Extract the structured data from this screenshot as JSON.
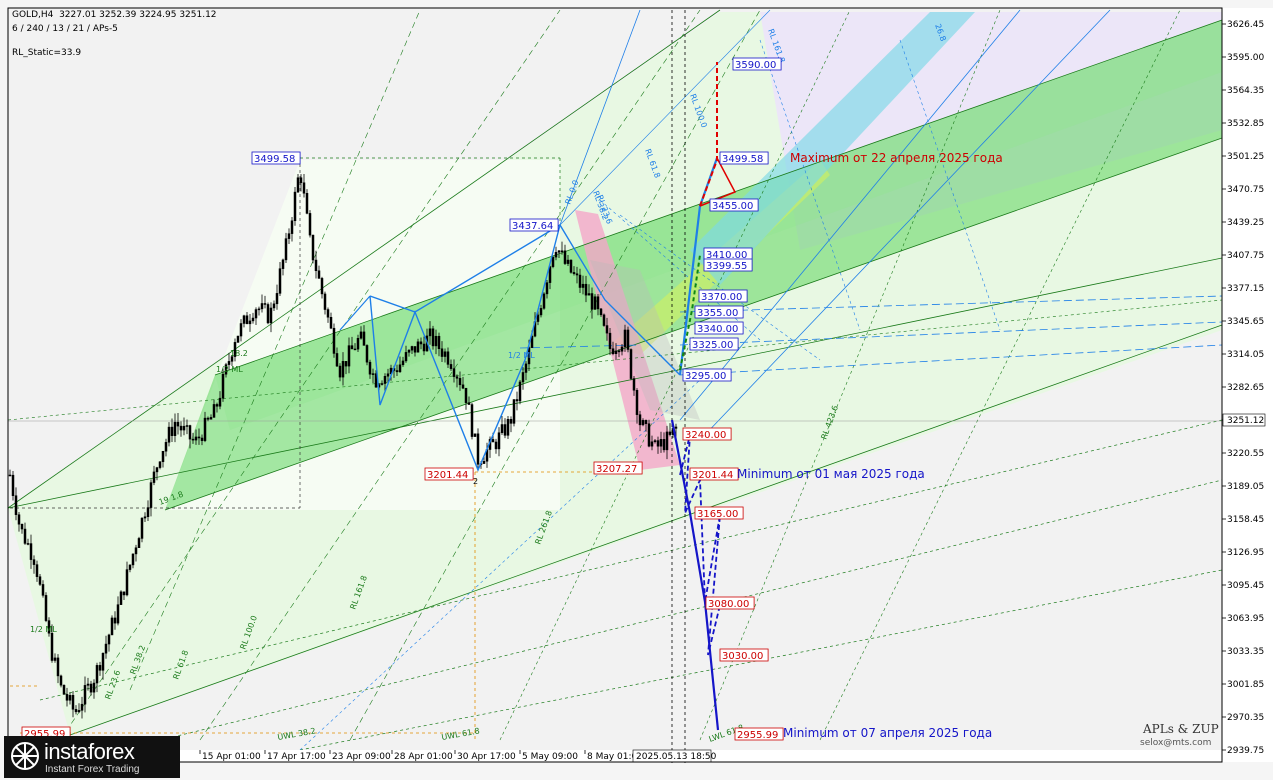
{
  "header": {
    "line1": "GOLD,H4  3227.01 3252.39 3224.95 3251.12",
    "line2": "6 / 240 / 13 / 21 / APs-5",
    "indicator": "RL_Static=33.9"
  },
  "chart_data": {
    "type": "candlestick",
    "symbol": "GOLD",
    "timeframe": "H4",
    "ohlc_last": {
      "open": 3227.01,
      "high": 3252.39,
      "low": 3224.95,
      "close": 3251.12
    },
    "current_price": "3251.12",
    "y_range": [
      2939.75,
      3640.0
    ],
    "y_ticks": [
      "3626.45",
      "3595.00",
      "3564.35",
      "3532.85",
      "3501.25",
      "3470.75",
      "3439.25",
      "3407.75",
      "3377.15",
      "3345.65",
      "3314.05",
      "3282.65",
      "3251.12",
      "3220.55",
      "3189.05",
      "3158.45",
      "3126.95",
      "3095.45",
      "3063.95",
      "3033.35",
      "3001.85",
      "2970.35",
      "2939.75"
    ],
    "x_ticks": [
      "15 Apr 01:00",
      "17 Apr 17:00",
      "23 Apr 09:00",
      "28 Apr 01:00",
      "30 Apr 17:00",
      "5 May 09:00",
      "8 May 01:00",
      "2025.05.13 18:50"
    ],
    "price_levels": [
      {
        "label": "3590.00",
        "color": "#1515c8"
      },
      {
        "label": "3499.58",
        "color": "#1515c8"
      },
      {
        "label": "3455.00",
        "color": "#1515c8"
      },
      {
        "label": "3410.00",
        "color": "#1515c8"
      },
      {
        "label": "3399.55",
        "color": "#1515c8"
      },
      {
        "label": "3370.00",
        "color": "#1515c8"
      },
      {
        "label": "3355.00",
        "color": "#1515c8"
      },
      {
        "label": "3340.00",
        "color": "#1515c8"
      },
      {
        "label": "3325.00",
        "color": "#1515c8"
      },
      {
        "label": "3295.00",
        "color": "#1515c8"
      },
      {
        "label": "3240.00",
        "color": "#cc0000"
      },
      {
        "label": "3201.44",
        "color": "#cc0000"
      },
      {
        "label": "3165.00",
        "color": "#cc0000"
      },
      {
        "label": "3080.00",
        "color": "#cc0000"
      },
      {
        "label": "3030.00",
        "color": "#cc0000"
      },
      {
        "label": "2955.99",
        "color": "#cc0000"
      }
    ],
    "pivot_labels": [
      {
        "label": "3499.58",
        "color": "#1515c8"
      },
      {
        "label": "3437.64",
        "color": "#1515c8"
      },
      {
        "label": "3201.44",
        "color": "#cc0000"
      },
      {
        "label": "3207.27",
        "color": "#cc0000"
      },
      {
        "label": "2955.99",
        "color": "#cc0000"
      }
    ],
    "annotations": [
      {
        "text": "Maximum от 22 апреля 2025 года",
        "color": "#cc0000"
      },
      {
        "text": "Minimum от 01 мая 2025 года",
        "color": "#1515c8"
      },
      {
        "text": "Minimum от 07 апреля 2025 года",
        "color": "#1515c8"
      }
    ],
    "channel_labels": [
      "RL 161.8",
      "RL 100.0",
      "RL 61.8",
      "RL 38.2",
      "RL 23.6",
      "RL 0.0",
      "RL 423.6",
      "RL 261.8",
      "RL 161.8",
      "RL 100.0",
      "RL 61.8",
      "RL 38.2",
      "RL 23.6",
      "1/2 ML",
      "1/2 ML",
      "UWL 38.2",
      "UWL 61.8",
      "1/2 ML",
      "26.8",
      "18.2",
      "19 1.8",
      "LWL 61.8",
      "2"
    ],
    "grid": false
  },
  "branding": {
    "logo_name": "instaforex",
    "logo_tagline": "Instant Forex Trading",
    "watermark_title": "APLs & ZUP",
    "watermark_email": "selox@mts.com"
  },
  "colors": {
    "channel_green": "#5fd65f",
    "channel_light_green": "#d8f6d0",
    "cyan_band": "#7dd8e6",
    "pink_band": "#f4a6c8",
    "lavender": "#ece6f8",
    "blue_zigzag": "#1e7fe8",
    "red_target": "#e00000",
    "dark_blue": "#1515c8"
  }
}
